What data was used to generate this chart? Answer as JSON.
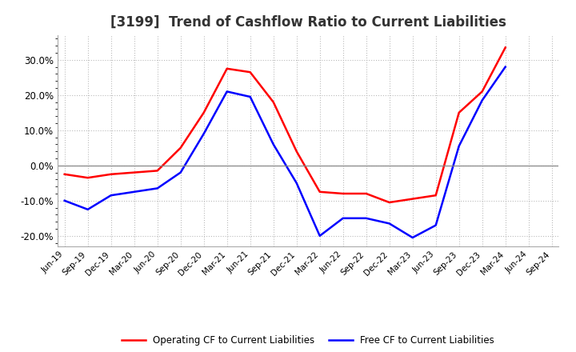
{
  "title": "[3199]  Trend of Cashflow Ratio to Current Liabilities",
  "x_labels": [
    "Jun-19",
    "Sep-19",
    "Dec-19",
    "Mar-20",
    "Jun-20",
    "Sep-20",
    "Dec-20",
    "Mar-21",
    "Jun-21",
    "Sep-21",
    "Dec-21",
    "Mar-22",
    "Jun-22",
    "Sep-22",
    "Dec-22",
    "Mar-23",
    "Jun-23",
    "Sep-23",
    "Dec-23",
    "Mar-24",
    "Jun-24",
    "Sep-24"
  ],
  "operating_cf": [
    -2.5,
    -3.5,
    -2.5,
    -2.0,
    -1.5,
    5.0,
    15.0,
    27.5,
    26.5,
    18.0,
    4.0,
    -7.5,
    -8.0,
    -8.0,
    -10.5,
    -9.5,
    -8.5,
    15.0,
    21.0,
    33.5,
    null,
    null
  ],
  "free_cf": [
    -10.0,
    -12.5,
    -8.5,
    -7.5,
    -6.5,
    -2.0,
    9.0,
    21.0,
    19.5,
    6.0,
    -5.0,
    -20.0,
    -15.0,
    -15.0,
    -16.5,
    -20.5,
    -17.0,
    5.5,
    18.5,
    28.0,
    null,
    null
  ],
  "ylim": [
    -23,
    37
  ],
  "yticks": [
    -20.0,
    -10.0,
    0.0,
    10.0,
    20.0,
    30.0
  ],
  "operating_color": "#ff0000",
  "free_color": "#0000ff",
  "grid_color": "#bbbbbb",
  "background_color": "#ffffff",
  "title_fontsize": 12,
  "legend_labels": [
    "Operating CF to Current Liabilities",
    "Free CF to Current Liabilities"
  ]
}
